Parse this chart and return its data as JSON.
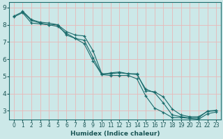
{
  "xlabel": "Humidex (Indice chaleur)",
  "bg_color": "#cce8e8",
  "grid_color": "#e8b8b8",
  "line_color": "#1a6b6b",
  "xlim": [
    -0.5,
    23.5
  ],
  "ylim": [
    2.5,
    9.3
  ],
  "yticks": [
    3,
    4,
    5,
    6,
    7,
    8,
    9
  ],
  "xticks": [
    0,
    1,
    2,
    3,
    4,
    5,
    6,
    7,
    8,
    9,
    10,
    11,
    12,
    13,
    14,
    15,
    16,
    17,
    18,
    19,
    20,
    21,
    22,
    23
  ],
  "lines": [
    {
      "x": [
        1,
        2,
        3,
        4,
        5,
        6,
        7,
        8,
        9,
        10,
        11,
        12,
        13,
        14,
        15,
        16,
        17,
        18,
        19,
        20,
        21,
        22,
        23
      ],
      "y": [
        8.8,
        8.3,
        8.15,
        8.1,
        8.0,
        7.6,
        7.4,
        7.35,
        6.5,
        5.15,
        5.15,
        5.2,
        5.15,
        5.15,
        4.15,
        4.1,
        3.8,
        3.1,
        2.75,
        2.65,
        2.65,
        2.95,
        3.0
      ]
    },
    {
      "x": [
        0,
        1,
        2,
        3,
        4,
        5,
        6,
        7,
        8,
        9,
        10,
        11,
        12,
        13,
        14,
        15,
        16,
        17,
        18,
        19,
        20,
        21,
        22,
        23
      ],
      "y": [
        8.5,
        8.75,
        8.25,
        8.1,
        8.0,
        7.9,
        7.5,
        7.2,
        7.1,
        6.1,
        5.1,
        5.05,
        5.05,
        5.05,
        4.85,
        3.85,
        3.15,
        2.9,
        2.6,
        2.6,
        2.55,
        2.5,
        2.82,
        2.92
      ]
    },
    {
      "x": [
        0,
        1,
        2,
        3,
        4,
        5,
        6,
        7,
        8,
        9,
        10,
        11,
        12,
        13,
        14,
        15,
        16,
        17,
        18,
        19,
        20,
        21,
        22,
        23
      ],
      "y": [
        8.45,
        8.7,
        8.1,
        8.05,
        8.0,
        8.0,
        7.4,
        7.2,
        6.9,
        5.9,
        5.1,
        5.2,
        5.25,
        5.15,
        5.1,
        4.25,
        4.05,
        3.45,
        2.75,
        2.65,
        2.58,
        2.58,
        2.98,
        3.02
      ]
    }
  ]
}
